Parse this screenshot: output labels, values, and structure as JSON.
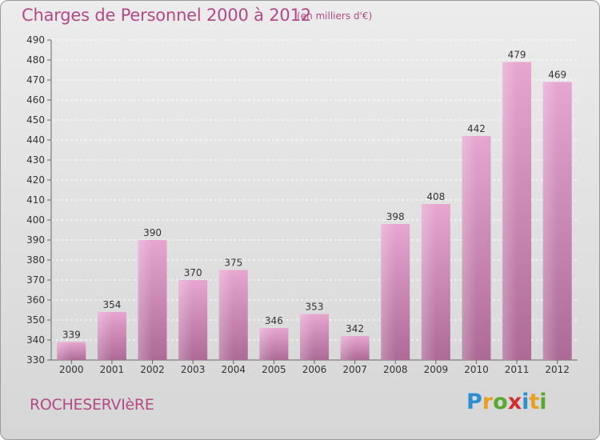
{
  "title": "Charges de Personnel 2000 à 2012",
  "subtitle": "(en milliers d'€)",
  "city": "ROCHESERVIèRE",
  "logo": {
    "letters": [
      "P",
      "r",
      "o",
      "x",
      "i",
      "t",
      "i"
    ],
    "colors": [
      "#2d8fd1",
      "#e8a020",
      "#5aa832",
      "#d0302f",
      "#2d8fd1",
      "#e8a020",
      "#5aa832"
    ]
  },
  "colors": {
    "bar": "#d98fbf",
    "text": "#b34a86"
  },
  "chart_data": {
    "type": "bar",
    "title": "Charges de Personnel 2000 à 2012",
    "categories": [
      "2000",
      "2001",
      "2002",
      "2003",
      "2004",
      "2005",
      "2006",
      "2007",
      "2008",
      "2009",
      "2010",
      "2011",
      "2012"
    ],
    "values": [
      339,
      354,
      390,
      370,
      375,
      346,
      353,
      342,
      398,
      408,
      442,
      479,
      469
    ],
    "ylim": [
      330,
      490
    ],
    "yticks": [
      330,
      340,
      350,
      360,
      370,
      380,
      390,
      400,
      410,
      420,
      430,
      440,
      450,
      460,
      470,
      480,
      490
    ],
    "grid": true
  }
}
